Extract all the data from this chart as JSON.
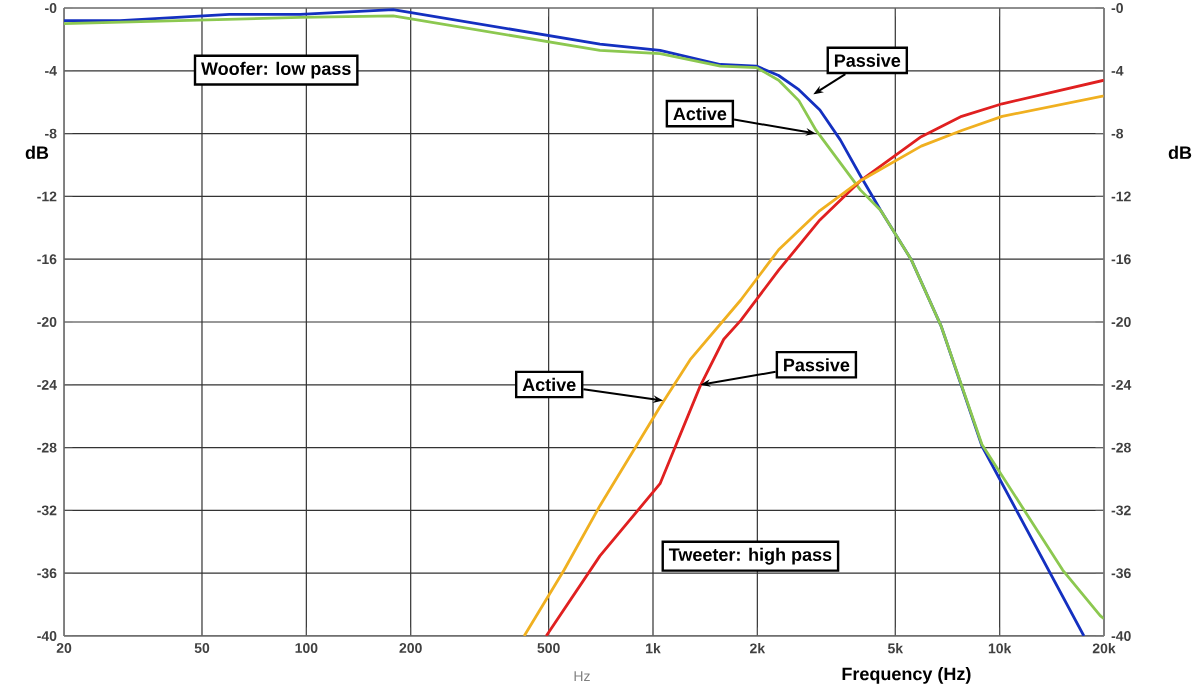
{
  "chart_data": {
    "type": "line",
    "xlabel": "Frequency (Hz)",
    "ylabel": "dB",
    "y2label": "dB",
    "log": "x",
    "grid": true,
    "xlim": [
      20,
      20000
    ],
    "xticks": [
      20,
      50,
      100,
      200,
      500,
      {
        "value": 1000,
        "label": "1k"
      },
      {
        "value": 2000,
        "label": "2k"
      },
      {
        "value": 5000,
        "label": "5k"
      },
      {
        "value": 10000,
        "label": "10k"
      },
      {
        "value": 20000,
        "label": "20k"
      }
    ],
    "ylim": [
      -40,
      0
    ],
    "yticks": [
      -40,
      -36,
      -32,
      -28,
      -24,
      -20,
      -16,
      -12,
      -8,
      -4,
      {
        "value": 0,
        "label": "-0"
      }
    ],
    "y2lim": [
      -40,
      0
    ],
    "y2ticks": [
      -40,
      -36,
      -32,
      -28,
      -24,
      -20,
      -16,
      -12,
      -8,
      -4,
      {
        "value": 0,
        "label": "-0"
      }
    ],
    "series": [
      {
        "color": "#1430c0",
        "x": [
          20,
          29,
          60,
          96,
          178,
          703,
          1048,
          1565,
          1990,
          2304,
          2635,
          3030,
          3470,
          3970,
          4540,
          5550,
          6790,
          8890,
          17500
        ],
        "values": [
          -0.8,
          -0.8,
          -0.4,
          -0.4,
          -0.1,
          -2.3,
          -2.7,
          -3.6,
          -3.7,
          -4.3,
          -5.2,
          -6.5,
          -8.4,
          -10.7,
          -12.9,
          -16,
          -20.3,
          -27.9,
          -40
        ]
      },
      {
        "color": "#8cc850",
        "x": [
          20,
          96,
          178,
          703,
          1048,
          1565,
          1990,
          2304,
          2635,
          2955,
          3970,
          4540,
          5550,
          6790,
          8890,
          15200,
          19500,
          20000
        ],
        "values": [
          -1.0,
          -0.6,
          -0.5,
          -2.7,
          -2.9,
          -3.7,
          -3.8,
          -4.6,
          -5.9,
          -7.8,
          -11.6,
          -12.9,
          -16,
          -20.3,
          -27.8,
          -35.8,
          -38.7,
          -38.9
        ]
      },
      {
        "color": "#e02020",
        "x": [
          492,
          703,
          1048,
          1367,
          1600,
          1792,
          2304,
          3030,
          3970,
          5940,
          7770,
          10170,
          20000
        ],
        "values": [
          -40,
          -34.9,
          -30.3,
          -24.1,
          -21.1,
          -19.9,
          -16.7,
          -13.5,
          -11,
          -8.2,
          -6.9,
          -6.1,
          -4.6
        ]
      },
      {
        "color": "#f0b020",
        "x": [
          425,
          554,
          703,
          1048,
          1280,
          1792,
          2304,
          3030,
          3970,
          5940,
          7770,
          10170,
          20000
        ],
        "values": [
          -40,
          -35.8,
          -31.7,
          -25.4,
          -22.4,
          -18.6,
          -15.4,
          -12.9,
          -11,
          -8.8,
          -7.8,
          -6.9,
          -5.6
        ]
      }
    ],
    "annotations": [
      "Woofer: low pass",
      {
        "text": "Passive",
        "x": 2900,
        "y": -5.5
      },
      {
        "text": "Active",
        "x": 2950,
        "y": -8
      },
      {
        "text": "Active",
        "x": 1070,
        "y": -25
      },
      {
        "text": "Passive",
        "x": 1370,
        "y": -24
      },
      "Tweeter: high pass",
      "Hz"
    ]
  }
}
